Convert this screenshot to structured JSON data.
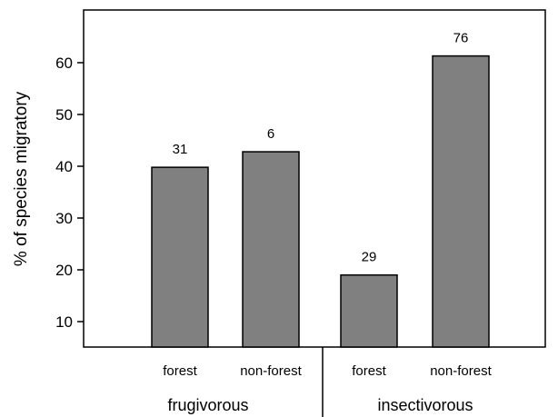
{
  "chart_data": {
    "type": "bar",
    "title": "",
    "xlabel": "",
    "ylabel": "% of species migratory",
    "ylim": [
      5,
      70
    ],
    "yticks": [
      10,
      20,
      30,
      40,
      50,
      60
    ],
    "grid": false,
    "bar_color": "#808080",
    "categories": [
      "forest",
      "non-forest",
      "forest",
      "non-forest"
    ],
    "groups": [
      "frugivorous",
      "frugivorous",
      "insectivorous",
      "insectivorous"
    ],
    "group_labels": [
      "frugivorous",
      "insectivorous"
    ],
    "values": [
      39.8,
      42.8,
      19.0,
      61.3
    ],
    "data_labels": [
      "31",
      "6",
      "29",
      "76"
    ]
  }
}
